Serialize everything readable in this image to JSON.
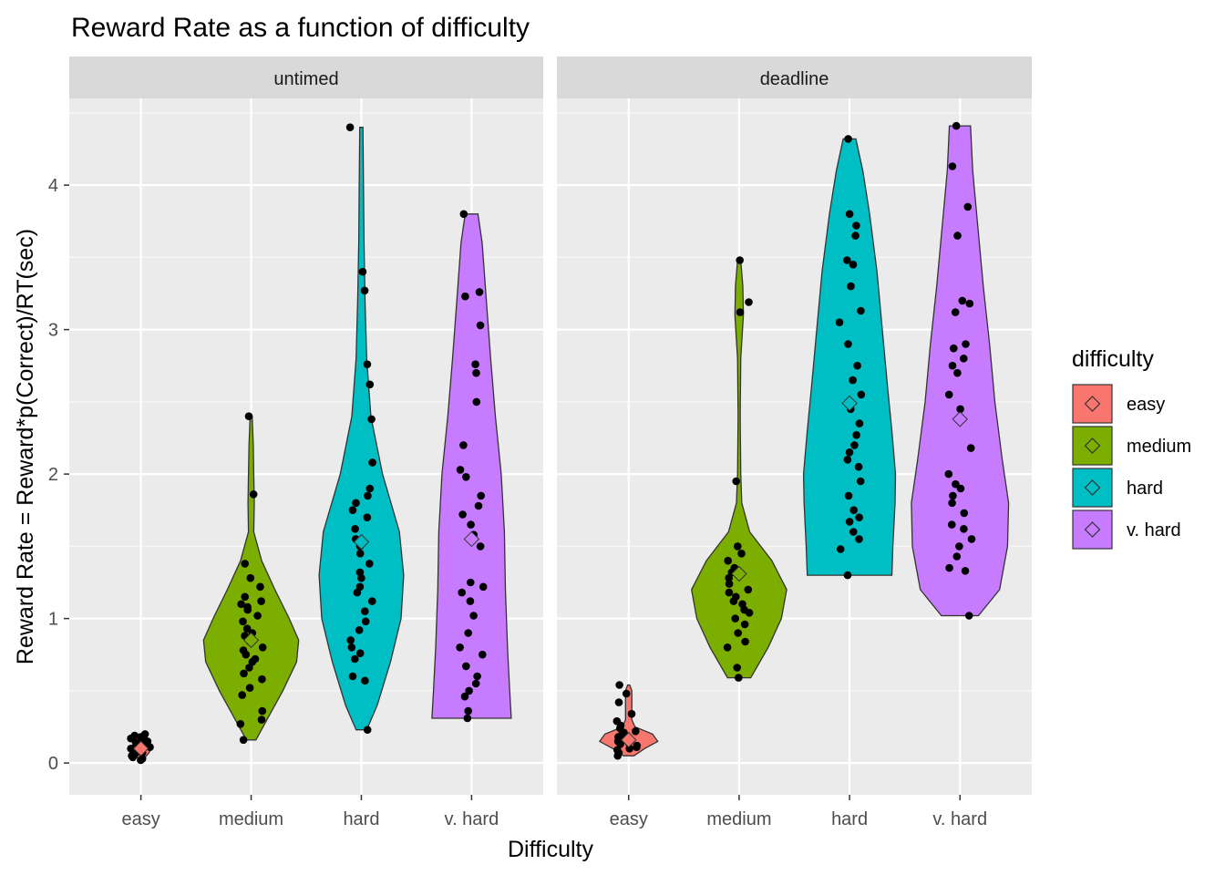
{
  "chart_data": {
    "type": "violin",
    "title": "Reward Rate as a function of difficulty",
    "xlabel": "Difficulty",
    "ylabel": "Reward Rate = Reward*p(Correct)/RT(sec)",
    "ylim": [
      -0.22,
      4.6
    ],
    "yticks": [
      0,
      1,
      2,
      3,
      4
    ],
    "categories": [
      "easy",
      "medium",
      "hard",
      "v. hard"
    ],
    "grid": true,
    "legend": {
      "title": "difficulty",
      "position": "right",
      "entries": [
        "easy",
        "medium",
        "hard",
        "v. hard"
      ]
    },
    "colors": {
      "easy": "#F8766D",
      "medium": "#7CAE00",
      "hard": "#00BFC4",
      "v. hard": "#C77CFF"
    },
    "panels": [
      {
        "label": "untimed",
        "series": [
          {
            "category": "easy",
            "min": 0.02,
            "max": 0.2,
            "mean": 0.1,
            "violin": [
              [
                0.02,
                0.02
              ],
              [
                0.04,
                0.08
              ],
              [
                0.07,
                0.15
              ],
              [
                0.1,
                0.2
              ],
              [
                0.13,
                0.14
              ],
              [
                0.16,
                0.14
              ],
              [
                0.18,
                0.08
              ],
              [
                0.2,
                0.04
              ]
            ],
            "points": [
              0.02,
              0.03,
              0.05,
              0.06,
              0.08,
              0.09,
              0.1,
              0.11,
              0.12,
              0.13,
              0.14,
              0.15,
              0.16,
              0.17,
              0.18,
              0.19,
              0.2,
              0.04,
              0.07,
              0.12
            ]
          },
          {
            "category": "medium",
            "min": 0.16,
            "max": 2.4,
            "mean": 0.85,
            "violin": [
              [
                0.16,
                0.09
              ],
              [
                0.3,
                0.3
              ],
              [
                0.5,
                0.6
              ],
              [
                0.7,
                0.86
              ],
              [
                0.85,
                0.9
              ],
              [
                1.0,
                0.72
              ],
              [
                1.2,
                0.45
              ],
              [
                1.4,
                0.2
              ],
              [
                1.6,
                0.05
              ],
              [
                1.8,
                0.06
              ],
              [
                2.0,
                0.05
              ],
              [
                2.2,
                0.04
              ],
              [
                2.4,
                0.02
              ]
            ],
            "points": [
              0.16,
              0.27,
              0.3,
              0.36,
              0.47,
              0.52,
              0.58,
              0.62,
              0.66,
              0.7,
              0.72,
              0.75,
              0.78,
              0.8,
              0.84,
              0.88,
              0.9,
              0.93,
              0.98,
              1.02,
              1.06,
              1.08,
              1.1,
              1.12,
              1.15,
              1.22,
              1.28,
              1.38,
              1.86,
              2.4
            ]
          },
          {
            "category": "hard",
            "min": 0.23,
            "max": 4.4,
            "mean": 1.53,
            "violin": [
              [
                0.23,
                0.1
              ],
              [
                0.4,
                0.3
              ],
              [
                0.7,
                0.55
              ],
              [
                1.0,
                0.75
              ],
              [
                1.3,
                0.8
              ],
              [
                1.6,
                0.72
              ],
              [
                2.0,
                0.4
              ],
              [
                2.4,
                0.18
              ],
              [
                2.8,
                0.1
              ],
              [
                3.2,
                0.07
              ],
              [
                3.6,
                0.05
              ],
              [
                4.0,
                0.04
              ],
              [
                4.4,
                0.03
              ]
            ],
            "points": [
              0.23,
              0.57,
              0.6,
              0.72,
              0.76,
              0.8,
              0.85,
              0.92,
              0.98,
              1.05,
              1.12,
              1.18,
              1.22,
              1.28,
              1.32,
              1.38,
              1.45,
              1.5,
              1.55,
              1.62,
              1.7,
              1.75,
              1.8,
              1.85,
              1.9,
              2.08,
              2.38,
              2.62,
              2.76,
              3.27,
              3.4,
              4.4
            ]
          },
          {
            "category": "v. hard",
            "min": 0.31,
            "max": 3.8,
            "mean": 1.55,
            "violin": [
              [
                0.31,
                0.75
              ],
              [
                0.5,
                0.72
              ],
              [
                0.8,
                0.68
              ],
              [
                1.2,
                0.64
              ],
              [
                1.6,
                0.62
              ],
              [
                2.0,
                0.56
              ],
              [
                2.4,
                0.45
              ],
              [
                2.8,
                0.36
              ],
              [
                3.2,
                0.28
              ],
              [
                3.6,
                0.2
              ],
              [
                3.8,
                0.12
              ]
            ],
            "points": [
              0.31,
              0.36,
              0.46,
              0.5,
              0.55,
              0.6,
              0.67,
              0.75,
              0.8,
              0.9,
              1.02,
              1.12,
              1.18,
              1.22,
              1.25,
              1.5,
              1.58,
              1.65,
              1.72,
              1.78,
              1.85,
              1.98,
              2.03,
              2.2,
              2.5,
              2.7,
              2.76,
              3.03,
              3.23,
              3.26,
              3.8
            ]
          }
        ]
      },
      {
        "label": "deadline",
        "series": [
          {
            "category": "easy",
            "min": 0.05,
            "max": 0.54,
            "mean": 0.16,
            "violin": [
              [
                0.05,
                0.1
              ],
              [
                0.1,
                0.3
              ],
              [
                0.15,
                0.55
              ],
              [
                0.2,
                0.45
              ],
              [
                0.25,
                0.12
              ],
              [
                0.3,
                0.06
              ],
              [
                0.4,
                0.06
              ],
              [
                0.5,
                0.06
              ],
              [
                0.54,
                0.02
              ]
            ],
            "points": [
              0.05,
              0.07,
              0.09,
              0.1,
              0.11,
              0.12,
              0.13,
              0.14,
              0.15,
              0.16,
              0.17,
              0.18,
              0.19,
              0.2,
              0.21,
              0.22,
              0.24,
              0.26,
              0.29,
              0.34,
              0.42,
              0.48,
              0.54
            ]
          },
          {
            "category": "medium",
            "min": 0.59,
            "max": 3.48,
            "mean": 1.31,
            "violin": [
              [
                0.59,
                0.22
              ],
              [
                0.8,
                0.55
              ],
              [
                1.0,
                0.8
              ],
              [
                1.2,
                0.9
              ],
              [
                1.4,
                0.62
              ],
              [
                1.6,
                0.2
              ],
              [
                1.8,
                0.05
              ],
              [
                2.0,
                0.03
              ],
              [
                2.4,
                0.02
              ],
              [
                2.8,
                0.03
              ],
              [
                3.1,
                0.08
              ],
              [
                3.3,
                0.07
              ],
              [
                3.48,
                0.03
              ]
            ],
            "points": [
              0.59,
              0.66,
              0.8,
              0.84,
              0.9,
              0.96,
              1.0,
              1.04,
              1.06,
              1.1,
              1.12,
              1.15,
              1.18,
              1.2,
              1.24,
              1.28,
              1.32,
              1.35,
              1.4,
              1.45,
              1.5,
              1.95,
              3.12,
              3.19,
              3.48
            ]
          },
          {
            "category": "hard",
            "min": 1.3,
            "max": 4.32,
            "mean": 2.49,
            "violin": [
              [
                1.3,
                0.8
              ],
              [
                1.5,
                0.82
              ],
              [
                1.8,
                0.86
              ],
              [
                2.0,
                0.87
              ],
              [
                2.3,
                0.8
              ],
              [
                2.6,
                0.72
              ],
              [
                3.0,
                0.62
              ],
              [
                3.4,
                0.52
              ],
              [
                3.8,
                0.38
              ],
              [
                4.1,
                0.25
              ],
              [
                4.32,
                0.12
              ]
            ],
            "points": [
              1.3,
              1.48,
              1.55,
              1.6,
              1.67,
              1.7,
              1.75,
              1.85,
              1.95,
              2.05,
              2.1,
              2.15,
              2.2,
              2.27,
              2.35,
              2.45,
              2.55,
              2.65,
              2.75,
              2.9,
              3.05,
              3.13,
              3.3,
              3.45,
              3.48,
              3.65,
              3.72,
              3.8,
              4.32
            ]
          },
          {
            "category": "v. hard",
            "min": 1.02,
            "max": 4.41,
            "mean": 2.38,
            "violin": [
              [
                1.02,
                0.35
              ],
              [
                1.2,
                0.75
              ],
              [
                1.5,
                0.9
              ],
              [
                1.8,
                0.92
              ],
              [
                2.1,
                0.8
              ],
              [
                2.5,
                0.66
              ],
              [
                2.9,
                0.56
              ],
              [
                3.3,
                0.44
              ],
              [
                3.7,
                0.34
              ],
              [
                4.1,
                0.24
              ],
              [
                4.41,
                0.2
              ]
            ],
            "points": [
              1.02,
              1.33,
              1.35,
              1.43,
              1.5,
              1.55,
              1.62,
              1.65,
              1.73,
              1.8,
              1.85,
              1.9,
              1.93,
              2.0,
              2.18,
              2.45,
              2.55,
              2.7,
              2.75,
              2.8,
              2.87,
              2.9,
              3.12,
              3.18,
              3.2,
              3.65,
              3.85,
              4.13,
              4.41
            ]
          }
        ]
      }
    ]
  }
}
